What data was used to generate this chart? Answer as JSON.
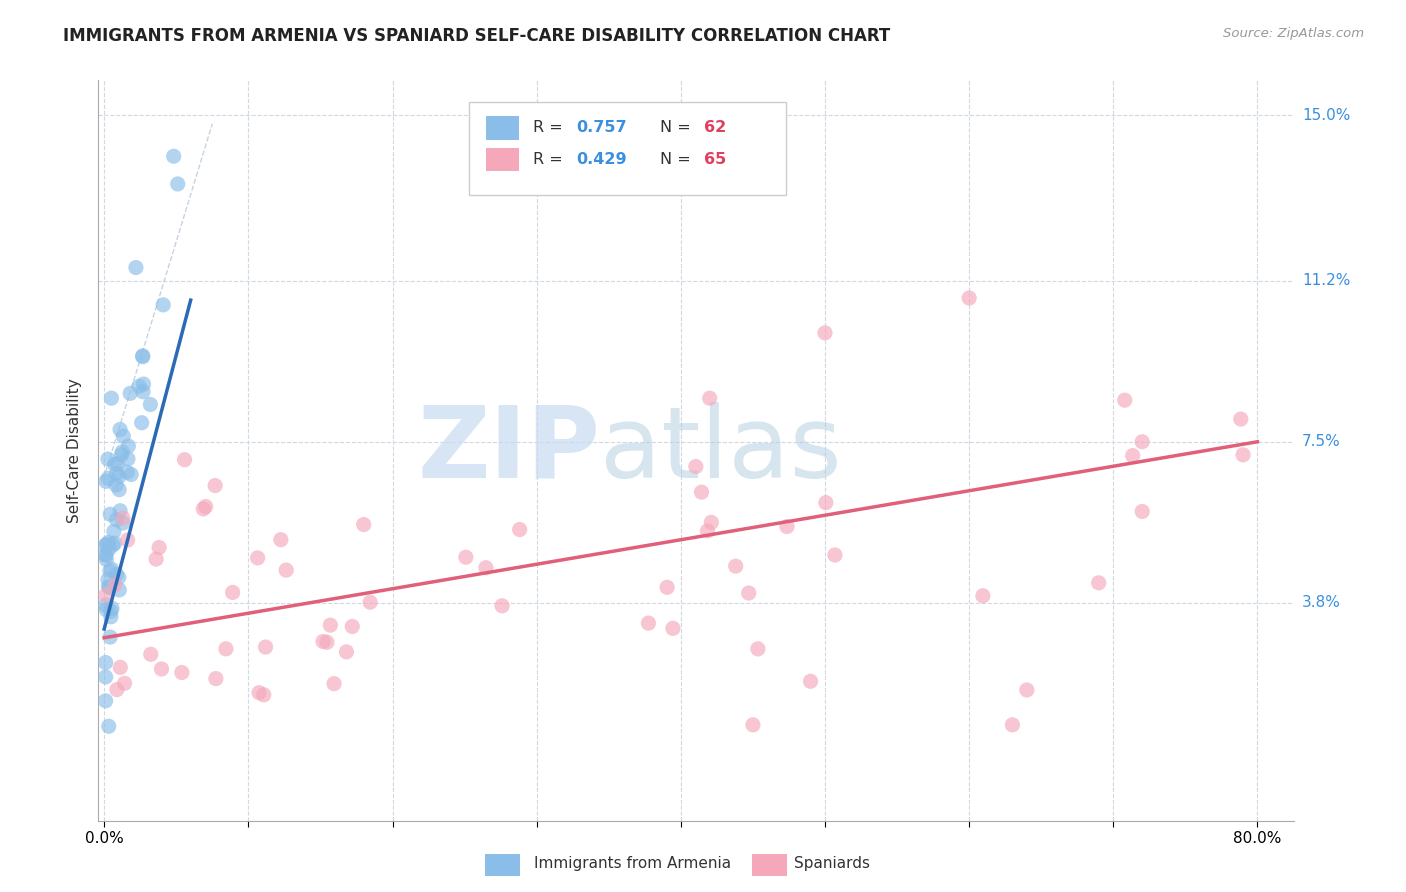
{
  "title": "IMMIGRANTS FROM ARMENIA VS SPANIARD SELF-CARE DISABILITY CORRELATION CHART",
  "source": "Source: ZipAtlas.com",
  "ylabel": "Self-Care Disability",
  "ytick_values": [
    0.0,
    0.038,
    0.075,
    0.112,
    0.15
  ],
  "ytick_labels": [
    "",
    "3.8%",
    "7.5%",
    "11.2%",
    "15.0%"
  ],
  "xlim": [
    -0.004,
    0.825
  ],
  "ylim": [
    -0.012,
    0.158
  ],
  "r_armenia": 0.757,
  "n_armenia": 62,
  "r_spaniard": 0.429,
  "n_spaniard": 65,
  "color_armenia": "#8abde8",
  "color_spaniard": "#f4a8ba",
  "color_line_armenia": "#2b6bb5",
  "color_line_spaniard": "#e0607a",
  "color_diagonal": "#b8c8d8",
  "color_r_value": "#3a90e0",
  "color_n_value": "#e04060",
  "watermark_zip": "ZIP",
  "watermark_atlas": "atlas",
  "watermark_color_zip": "#c8daf0",
  "watermark_color_atlas": "#b0cce0"
}
